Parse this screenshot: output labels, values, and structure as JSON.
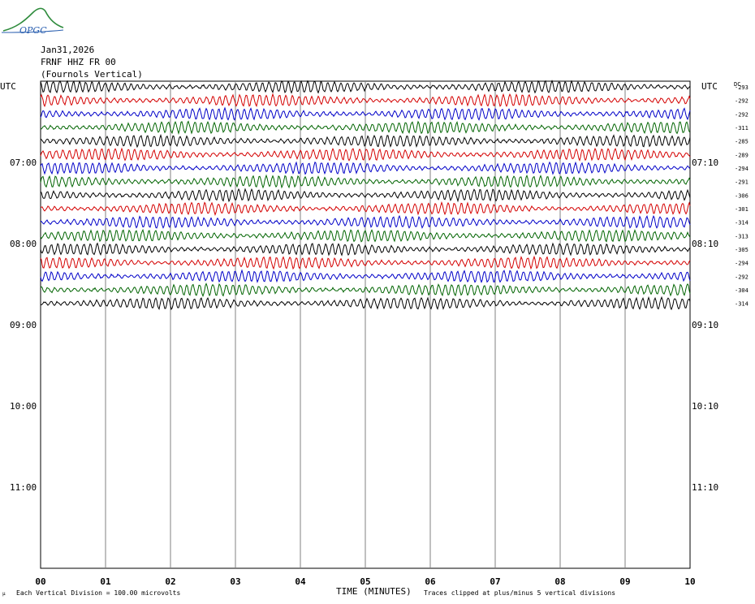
{
  "header": {
    "date": "Jan31,2026",
    "station": "FRNF HHZ FR 00",
    "description": "(Fournols Vertical)"
  },
  "logo": {
    "text": "OPGC"
  },
  "labels": {
    "utc_left": "UTC",
    "utc_right": "UTC",
    "dc": "DC"
  },
  "footer": {
    "scale": "Each Vertical Division =  100.00 microvolts",
    "xlabel": "TIME (MINUTES)",
    "clip": "Traces clipped at plus/minus 5 vertical divisions"
  },
  "colors": {
    "cycle": [
      "#000000",
      "#d40000",
      "#0000c8",
      "#006400"
    ],
    "grid": "#808080"
  },
  "chart_data": {
    "type": "line",
    "title": "FRNF HHZ FR 00",
    "xlabel": "TIME (MINUTES)",
    "xticks": [
      "00",
      "01",
      "02",
      "03",
      "04",
      "05",
      "06",
      "07",
      "08",
      "09",
      "10"
    ],
    "xlim": [
      0,
      10
    ],
    "left_hour_labels": [
      "07:00",
      "08:00",
      "09:00",
      "10:00",
      "11:00"
    ],
    "right_hour_labels": [
      "07:10",
      "08:10",
      "09:10",
      "10:10",
      "11:10"
    ],
    "trace_dc_offsets": [
      -293,
      -292,
      -292,
      -311,
      -285,
      -289,
      -294,
      -291,
      -306,
      -301,
      -314,
      -313,
      -305,
      -294,
      -292,
      -304,
      -314
    ],
    "traces_per_hour": 6,
    "grid": true
  }
}
